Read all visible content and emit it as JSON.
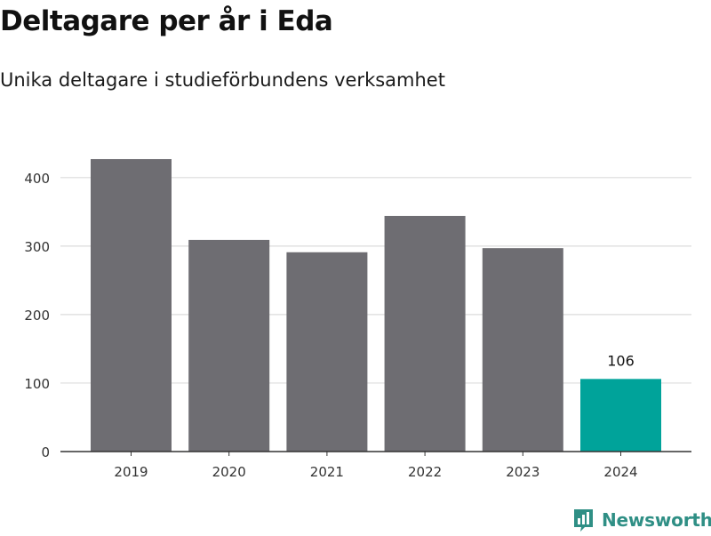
{
  "header": {
    "title": "Deltagare per år i Eda",
    "subtitle": "Unika deltagare i studieförbundens verksamhet"
  },
  "brand": {
    "name": "Newsworthy",
    "icon": "newsworthy-logo-icon",
    "color": "#2f8f85"
  },
  "chart_data": {
    "type": "bar",
    "categories": [
      "2019",
      "2020",
      "2021",
      "2022",
      "2023",
      "2024"
    ],
    "values": [
      427,
      309,
      291,
      344,
      297,
      106
    ],
    "ylim": [
      0,
      440
    ],
    "yticks": [
      0,
      100,
      200,
      300,
      400
    ],
    "grid": true,
    "legend": "none",
    "bar_color": "#6e6d72",
    "highlight_color": "#00a39a",
    "highlight_index": 5,
    "data_labels": [
      {
        "index": 5,
        "text": "106"
      }
    ]
  }
}
